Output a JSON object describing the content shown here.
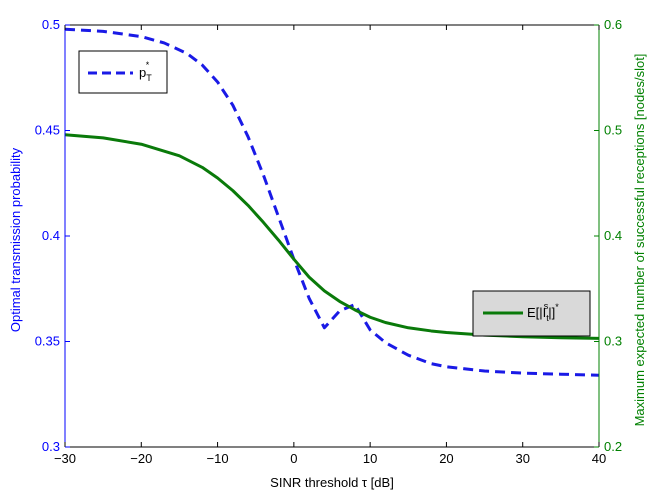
{
  "chart_data": {
    "type": "line",
    "xlabel": "SINR threshold τ [dB]",
    "ylabel_left": "Optimal transmission probability",
    "ylabel_right": "Maximum expected number of successful receptions [nodes/slot]",
    "xlim": [
      -30,
      40
    ],
    "ylim_left": [
      0.3,
      0.5
    ],
    "ylim_right": [
      0.2,
      0.6
    ],
    "x_ticks": [
      -30,
      -20,
      -10,
      0,
      10,
      20,
      30,
      40
    ],
    "x_tick_labels": [
      "−30",
      "−20",
      "−10",
      "0",
      "10",
      "20",
      "30",
      "40"
    ],
    "y_left_ticks": [
      0.3,
      0.35,
      0.4,
      0.45,
      0.5
    ],
    "y_left_tick_labels": [
      "0.3",
      "0.35",
      "0.4",
      "0.45",
      "0.5"
    ],
    "y_right_ticks": [
      0.2,
      0.3,
      0.4,
      0.5,
      0.6
    ],
    "y_right_tick_labels": [
      "0.2",
      "0.3",
      "0.4",
      "0.5",
      "0.6"
    ],
    "grid": false,
    "colors": {
      "left_axis": "#0000ff",
      "right_axis": "#008000",
      "series_left": "#1a1ae6",
      "series_right": "#0a7a0a"
    },
    "series": [
      {
        "axis": "left",
        "style": "dashed",
        "color": "#1a1ae6",
        "legend": {
          "main": "p",
          "sub": "T",
          "sup": "*",
          "placement": "top-left"
        },
        "x": [
          -30,
          -25,
          -20,
          -17,
          -14,
          -12,
          -10,
          -8,
          -6,
          -4,
          -2,
          0,
          2,
          4,
          6,
          8,
          10,
          12,
          15,
          18,
          20,
          25,
          30,
          35,
          40
        ],
        "y": [
          0.498,
          0.497,
          0.4945,
          0.4915,
          0.4865,
          0.481,
          0.473,
          0.462,
          0.447,
          0.429,
          0.409,
          0.389,
          0.3705,
          0.3565,
          0.3645,
          0.3675,
          0.3555,
          0.3495,
          0.3435,
          0.3395,
          0.338,
          0.336,
          0.335,
          0.3345,
          0.334
        ]
      },
      {
        "axis": "right",
        "style": "solid",
        "color": "#0a7a0a",
        "legend": {
          "main": "E[|I",
          "sub": "t",
          "sup": "s",
          "tail": "|]",
          "tail_sup": "*",
          "placement": "right"
        },
        "x": [
          -30,
          -25,
          -20,
          -15,
          -12,
          -10,
          -8,
          -6,
          -4,
          -2,
          0,
          2,
          4,
          6,
          8,
          10,
          12,
          15,
          18,
          20,
          25,
          30,
          35,
          40
        ],
        "y": [
          0.496,
          0.493,
          0.487,
          0.476,
          0.465,
          0.455,
          0.443,
          0.429,
          0.413,
          0.396,
          0.378,
          0.361,
          0.348,
          0.338,
          0.33,
          0.323,
          0.318,
          0.313,
          0.31,
          0.3085,
          0.306,
          0.3045,
          0.3035,
          0.303
        ]
      }
    ]
  }
}
